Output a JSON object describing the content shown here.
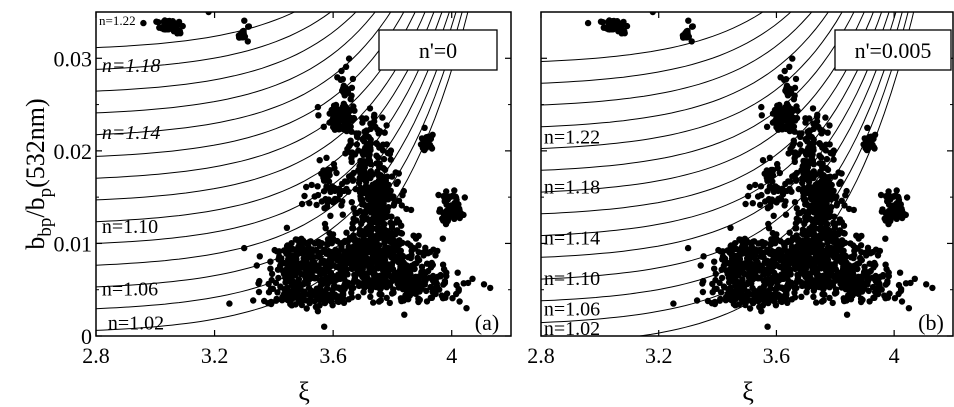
{
  "chart_data": [
    {
      "type": "scatter",
      "panel_label": "(a)",
      "inset_label": "n'=0",
      "xlabel": "ξ",
      "ylabel_main": "b",
      "ylabel_sub1": "bp",
      "ylabel_mid": "/b",
      "ylabel_sub2": "p",
      "ylabel_tail": "(532nm)",
      "xlim": [
        2.8,
        4.2
      ],
      "ylim": [
        0,
        0.035
      ],
      "xticks": [
        {
          "v": 2.8,
          "label": "2.8"
        },
        {
          "v": 3.2,
          "label": "3.2"
        },
        {
          "v": 3.6,
          "label": "3.6"
        },
        {
          "v": 4.0,
          "label": "4"
        }
      ],
      "yticks": [
        {
          "v": 0,
          "label": "0"
        },
        {
          "v": 0.01,
          "label": "0.01"
        },
        {
          "v": 0.02,
          "label": "0.02"
        },
        {
          "v": 0.03,
          "label": "0.03"
        }
      ],
      "curve_labels": [
        {
          "label": "n=1.22",
          "x": 2.81,
          "y": 0.0336,
          "small": true
        },
        {
          "label": "n=1.18",
          "x": 2.82,
          "y": 0.0285
        },
        {
          "label": "n=1.14",
          "x": 2.82,
          "y": 0.0213
        },
        {
          "label": "n=1.10",
          "x": 2.82,
          "y": 0.0111
        },
        {
          "label": "n=1.06",
          "x": 2.82,
          "y": 0.0044
        },
        {
          "label": "n=1.02",
          "x": 2.84,
          "y": 0.0007
        }
      ]
    },
    {
      "type": "scatter",
      "panel_label": "(b)",
      "inset_label": "n'=0.005",
      "xlabel": "ξ",
      "xlim": [
        2.8,
        4.2
      ],
      "ylim": [
        0,
        0.035
      ],
      "xticks": [
        {
          "v": 2.8,
          "label": "2.8"
        },
        {
          "v": 3.2,
          "label": "3.2"
        },
        {
          "v": 3.6,
          "label": "3.6"
        },
        {
          "v": 4.0,
          "label": "4"
        }
      ],
      "yticks": [
        {
          "v": 0,
          "label": ""
        },
        {
          "v": 0.01,
          "label": ""
        },
        {
          "v": 0.02,
          "label": ""
        },
        {
          "v": 0.03,
          "label": ""
        }
      ],
      "curve_labels": [
        {
          "label": "n=1.22",
          "x": 2.81,
          "y": 0.0208
        },
        {
          "label": "n=1.18",
          "x": 2.81,
          "y": 0.0154
        },
        {
          "label": "n=1.14",
          "x": 2.81,
          "y": 0.0099
        },
        {
          "label": "n=1.10",
          "x": 2.81,
          "y": 0.0055
        },
        {
          "label": "n=1.06",
          "x": 2.81,
          "y": 0.0022
        },
        {
          "label": "n=1.02",
          "x": 2.81,
          "y": 0.0001
        }
      ]
    }
  ]
}
